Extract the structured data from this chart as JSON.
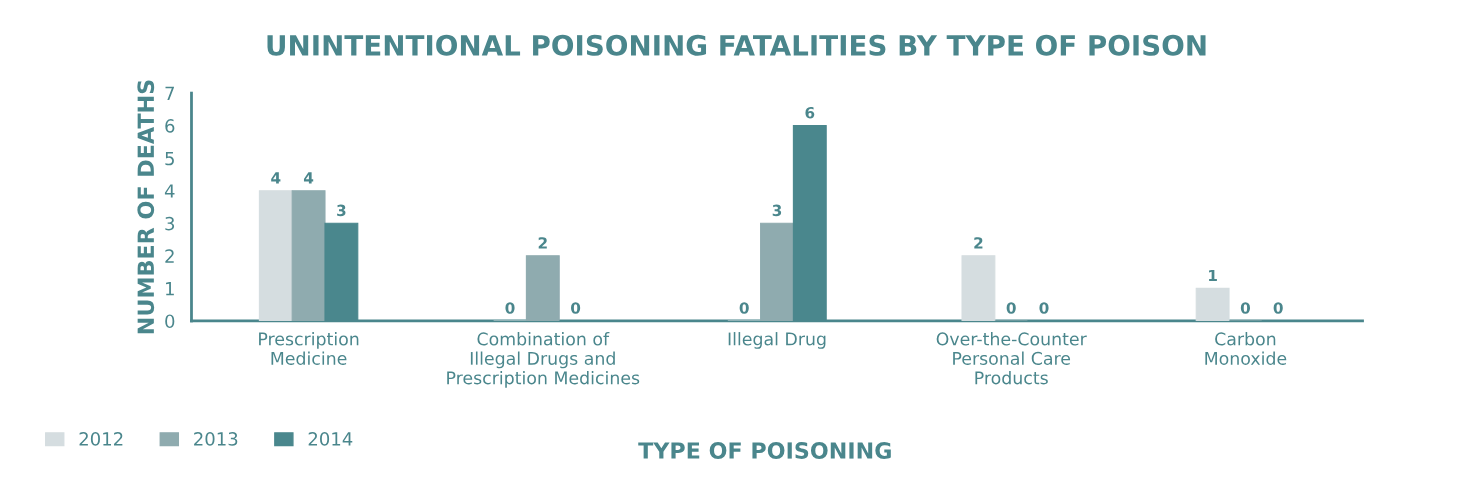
{
  "chart_data": {
    "type": "bar",
    "title": "UNINTENTIONAL POISONING FATALITIES BY TYPE OF POISON",
    "xlabel": "TYPE OF POISONING",
    "ylabel": "NUMBER OF DEATHS",
    "categories": [
      "Prescription\nMedicine",
      "Combination of\nIllegal Drugs and\nPrescription Medicines",
      "Illegal Drug",
      "Over-the-Counter\nPersonal Care\nProducts",
      "Carbon\nMonoxide"
    ],
    "series": [
      {
        "name": "2012",
        "color": "#d5dde0",
        "values": [
          4,
          0,
          0,
          2,
          1
        ]
      },
      {
        "name": "2013",
        "color": "#8fabaf",
        "values": [
          4,
          2,
          3,
          0,
          0
        ]
      },
      {
        "name": "2014",
        "color": "#4a878d",
        "values": [
          3,
          0,
          6,
          0,
          0
        ]
      }
    ],
    "ylim": [
      0,
      7
    ],
    "yticks": [
      0,
      1,
      2,
      3,
      4,
      5,
      6,
      7
    ],
    "data_labels": true,
    "legend": "bottom left",
    "grid": false
  }
}
